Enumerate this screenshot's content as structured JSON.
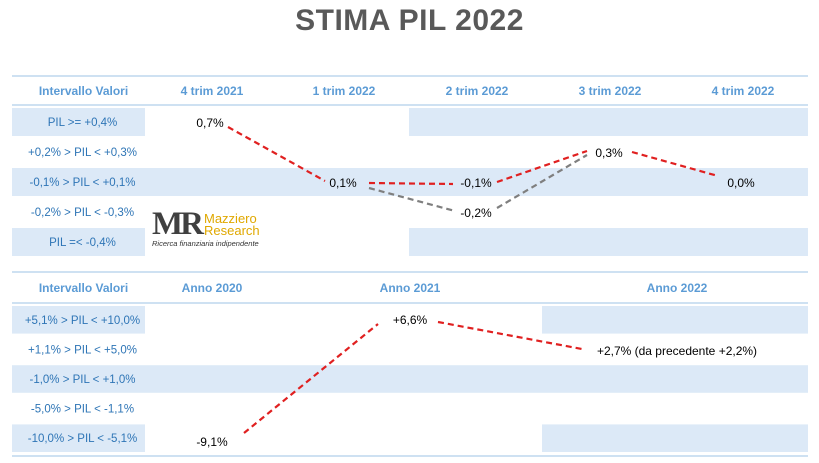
{
  "title": "STIMA PIL 2022",
  "colors": {
    "band": "#dce9f7",
    "divider": "#9dc3e6",
    "header_text": "#5b9bd5",
    "row_text": "#2e75b6",
    "line_red": "#e02020",
    "line_grey": "#7f7f7f"
  },
  "logo": {
    "mark": "MR",
    "name_line1": "Mazziero",
    "name_line2": "Research",
    "tagline": "Ricerca finanziaria indipendente"
  },
  "chart_data": [
    {
      "type": "line",
      "corner_label": "Intervallo Valori",
      "categories": [
        "4 trim 2021",
        "1 trim 2022",
        "2 trim 2022",
        "3 trim 2022",
        "4 trim 2022"
      ],
      "rows": [
        "PIL >= +0,4%",
        "+0,2% > PIL < +0,3%",
        "-0,1% > PIL < +0,1%",
        "-0,2% > PIL < -0,3%",
        "PIL =< -0,4%"
      ],
      "series": [
        {
          "values": [
            0.7,
            0.1,
            -0.1,
            0.3,
            0.0
          ],
          "labels": [
            "0,7%",
            "0,1%",
            "-0,1%",
            "0,3%",
            "0,0%"
          ],
          "row_index": [
            0,
            2,
            2,
            1,
            2
          ],
          "color": "#e02020",
          "dash": true
        },
        {
          "values": [
            null,
            0.1,
            -0.2,
            0.3,
            null
          ],
          "labels": [
            null,
            null,
            "-0,2%",
            null,
            null
          ],
          "row_index": [
            null,
            2,
            3,
            1,
            null
          ],
          "color": "#7f7f7f",
          "dash": true
        }
      ]
    },
    {
      "type": "line",
      "corner_label": "Intervallo Valori",
      "categories": [
        "Anno 2020",
        "Anno 2021",
        "Anno 2022"
      ],
      "rows": [
        "+5,1% > PIL < +10,0%",
        "+1,1% > PIL < +5,0%",
        "-1,0% > PIL < +1,0%",
        "-5,0% > PIL < -1,1%",
        "-10,0% > PIL < -5,1%"
      ],
      "series": [
        {
          "values": [
            -9.1,
            6.6,
            2.7
          ],
          "labels": [
            "-9,1%",
            "+6,6%",
            "+2,7% (da precedente +2,2%)"
          ],
          "row_index": [
            4,
            0,
            1
          ],
          "color": "#e02020",
          "dash": true
        }
      ]
    }
  ]
}
